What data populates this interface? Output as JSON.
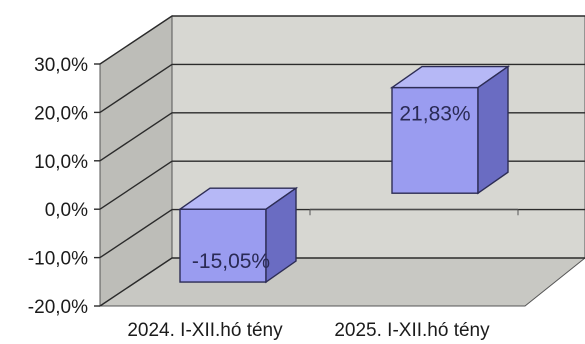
{
  "chart_data": {
    "type": "bar",
    "style": "3d-column",
    "categories": [
      "2024. I-XII.hó tény",
      "2025. I-XII.hó tény"
    ],
    "values": [
      -15.05,
      21.83
    ],
    "data_labels": [
      "-15,05%",
      "21,83%"
    ],
    "y_ticks": [
      "30,0%",
      "20,0%",
      "10,0%",
      "0,0%",
      "-10,0%",
      "-20,0%"
    ],
    "ylim": [
      -20,
      30
    ],
    "grid": true,
    "legend": "none",
    "colors": {
      "bar_front": "#9a9cf0",
      "bar_top": "#b6b8f6",
      "bar_side": "#6a6cc2",
      "back_wall": "#d7d7d2",
      "left_wall": "#bdbdb8",
      "floor": "#c8c8c3"
    }
  }
}
